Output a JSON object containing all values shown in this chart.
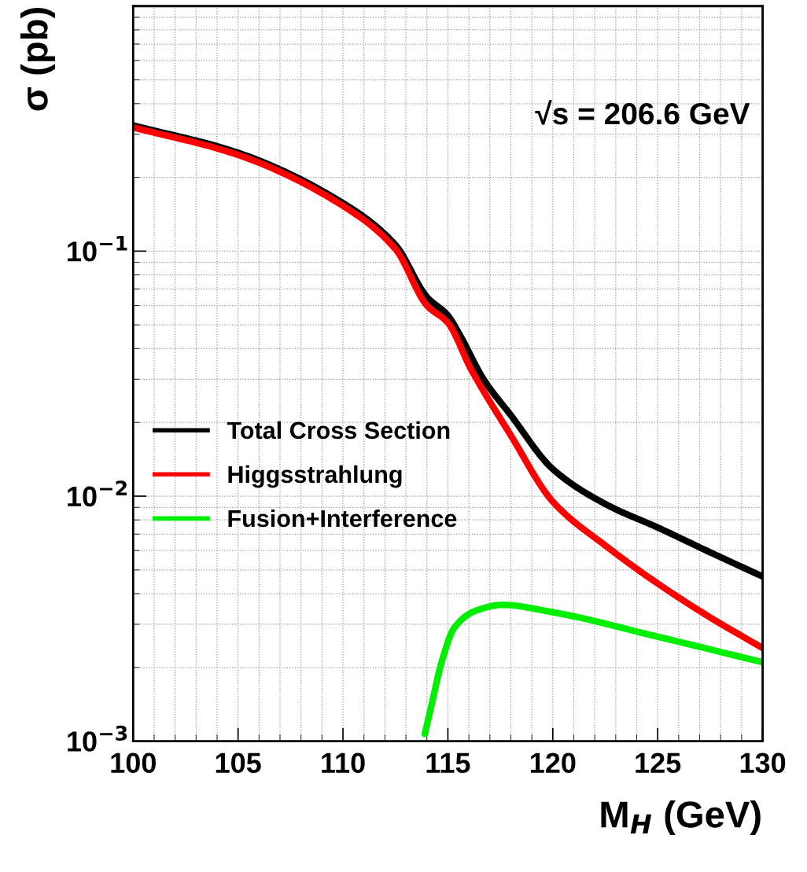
{
  "chart_data": {
    "type": "line",
    "xlabel": "M$_{H}$ (GeV)",
    "ylabel": "σ (pb)",
    "annotations": [
      "√s = 206.6 GeV"
    ],
    "log": "y",
    "grid": true,
    "legend": "left",
    "marker": "none",
    "line_style": "solid",
    "xlim": [
      100,
      130
    ],
    "xticks": [
      100,
      105,
      110,
      115,
      120,
      125,
      130
    ],
    "ylim": [
      0.001,
      1
    ],
    "yticks": [
      {
        "value": 0.001,
        "label": "10$^{−3}$"
      },
      {
        "value": 0.01,
        "label": "10$^{−2}$"
      },
      {
        "value": 0.1,
        "label": "10$^{−1}$"
      }
    ],
    "series": [
      {
        "name": "Total Cross Section",
        "color": "#000000",
        "x": [
          100,
          105,
          110,
          112.5,
          114,
          115,
          115.6,
          116.7,
          118,
          120,
          122.6,
          125,
          127.5,
          130
        ],
        "values": [
          0.326,
          0.252,
          0.157,
          0.106,
          0.065,
          0.0546,
          0.045,
          0.03,
          0.0214,
          0.0129,
          0.0092,
          0.00745,
          0.0059,
          0.0047
        ]
      },
      {
        "name": "Higgsstrahlung",
        "color": "#ff0000",
        "x": [
          100,
          105,
          110,
          112.5,
          114,
          115,
          116.1,
          118,
          120,
          122.6,
          125,
          127.5,
          130
        ],
        "values": [
          0.32,
          0.247,
          0.153,
          0.102,
          0.06,
          0.051,
          0.033,
          0.0177,
          0.0095,
          0.0062,
          0.0044,
          0.0032,
          0.0024
        ]
      },
      {
        "name": "Fusion+Interference",
        "color": "#00ee00",
        "x": [
          113.9,
          114.2,
          114.7,
          115.3,
          116.3,
          117.6,
          120,
          125,
          130
        ],
        "values": [
          0.00107,
          0.00138,
          0.0021,
          0.0029,
          0.0034,
          0.0036,
          0.00336,
          0.00267,
          0.0021
        ]
      }
    ]
  }
}
